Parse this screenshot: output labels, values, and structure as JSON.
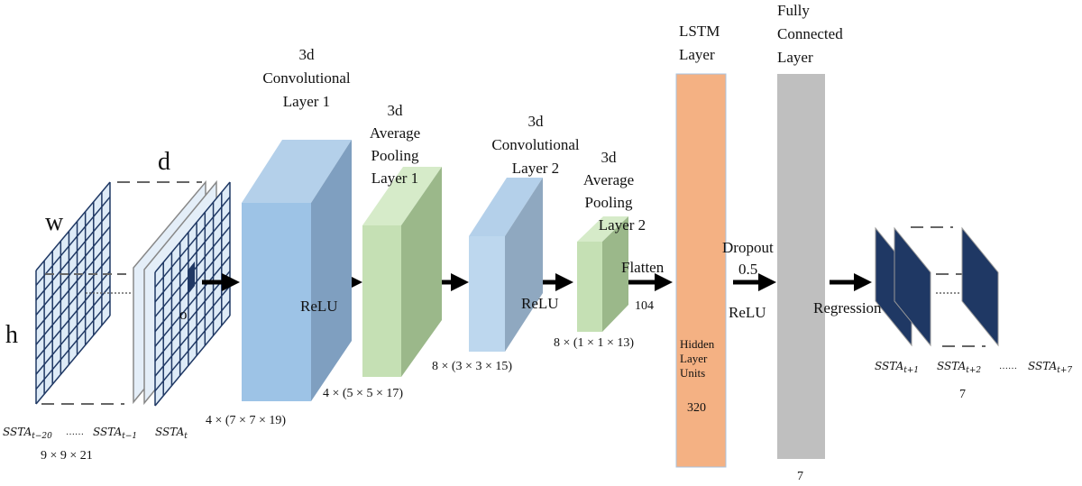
{
  "input": {
    "w_label": "w",
    "h_label": "h",
    "d_label": "d",
    "o_label": "o",
    "frames": [
      {
        "base": "SSTA",
        "sub": "t−20"
      },
      {
        "base": "SSTA",
        "sub": "t−1"
      },
      {
        "base": "SSTA",
        "sub": "t"
      }
    ],
    "ellipsis": "……",
    "shape": "9 × 9 × 21"
  },
  "layers": {
    "conv1": {
      "title": [
        "3d",
        "Convolutional",
        "Layer 1"
      ],
      "shape": "4 × (7 × 7 × 19)",
      "activation": "ReLU"
    },
    "pool1": {
      "title": [
        "3d",
        "Average",
        "Pooling",
        "Layer 1"
      ],
      "shape": "4 × (5 × 5 × 17)"
    },
    "conv2": {
      "title": [
        "3d",
        "Convolutional",
        "Layer 2"
      ],
      "shape": "8 × (3 × 3 × 15)",
      "activation": "ReLU"
    },
    "pool2": {
      "title": [
        "3d",
        "Average",
        "Pooling",
        "Layer 2"
      ],
      "shape": "8 × (1 × 1 × 13)"
    },
    "flatten": {
      "label": "Flatten",
      "size": "104"
    },
    "lstm": {
      "title": [
        "LSTM",
        "Layer"
      ],
      "inner": [
        "Hidden",
        "Layer",
        "Units"
      ],
      "units": "320"
    },
    "dropout": {
      "label": "Dropout",
      "rate": "0.5",
      "activation": "ReLU"
    },
    "fc": {
      "title": [
        "Fully",
        "Connected",
        "Layer"
      ],
      "size": "7"
    },
    "regression": {
      "label": "Regression"
    }
  },
  "output": {
    "frames": [
      {
        "base": "SSTA",
        "sub": "t+1"
      },
      {
        "base": "SSTA",
        "sub": "t+2"
      },
      {
        "base": "SSTA",
        "sub": "t+7"
      }
    ],
    "ellipsis": "……",
    "size": "7"
  },
  "colors": {
    "conv_front": "#9dc3e6",
    "conv_side": "#7f9fc0",
    "conv_top": "#b4d0ea",
    "pool_front": "#c5e0b4",
    "pool_side": "#9bb88a",
    "pool_top": "#d6ebc9",
    "lstm": "#f4b183",
    "fc": "#bfbfbf",
    "grid": "#1f3864",
    "output": "#1f3864"
  }
}
